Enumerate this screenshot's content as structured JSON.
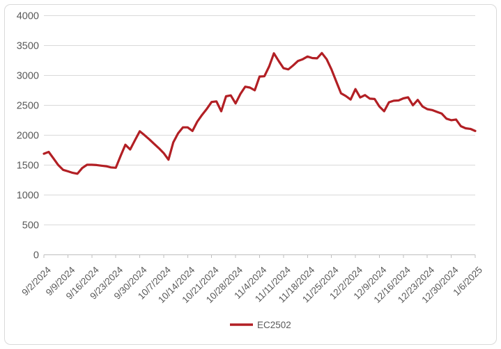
{
  "chart": {
    "legend_label": "EC2502",
    "colors": {
      "series": "#B21F24",
      "gridline": "#D9D9D9",
      "axis_line": "#BFBFBF",
      "label_text": "#595959",
      "background": "#FFFFFF",
      "frame_border": "#D9D9D9"
    }
  },
  "chart_data": {
    "type": "line",
    "title": "",
    "xlabel": "",
    "ylabel": "",
    "ylim": [
      0,
      4000
    ],
    "grid": "horizontal",
    "legend_position": "bottom",
    "y_ticks": [
      0,
      500,
      1000,
      1500,
      2000,
      2500,
      3000,
      3500,
      4000
    ],
    "x_tick_labels": [
      "9/2/2024",
      "9/9/2024",
      "9/16/2024",
      "9/23/2024",
      "9/30/2024",
      "10/7/2024",
      "10/14/2024",
      "10/21/2024",
      "10/28/2024",
      "11/4/2024",
      "11/11/2024",
      "11/18/2024",
      "11/25/2024",
      "12/2/2024",
      "12/9/2024",
      "12/16/2024",
      "12/23/2024",
      "12/30/2024",
      "1/6/2025"
    ],
    "x": [
      "9/2/2024",
      "9/3/2024",
      "9/4/2024",
      "9/5/2024",
      "9/6/2024",
      "9/9/2024",
      "9/10/2024",
      "9/11/2024",
      "9/12/2024",
      "9/13/2024",
      "9/16/2024",
      "9/17/2024",
      "9/18/2024",
      "9/19/2024",
      "9/20/2024",
      "9/23/2024",
      "9/24/2024",
      "9/25/2024",
      "9/26/2024",
      "9/27/2024",
      "9/30/2024",
      "10/1/2024",
      "10/2/2024",
      "10/3/2024",
      "10/4/2024",
      "10/7/2024",
      "10/8/2024",
      "10/9/2024",
      "10/10/2024",
      "10/11/2024",
      "10/14/2024",
      "10/15/2024",
      "10/16/2024",
      "10/17/2024",
      "10/18/2024",
      "10/21/2024",
      "10/22/2024",
      "10/23/2024",
      "10/24/2024",
      "10/25/2024",
      "10/28/2024",
      "10/29/2024",
      "10/30/2024",
      "10/31/2024",
      "11/1/2024",
      "11/4/2024",
      "11/5/2024",
      "11/6/2024",
      "11/7/2024",
      "11/8/2024",
      "11/11/2024",
      "11/12/2024",
      "11/13/2024",
      "11/14/2024",
      "11/15/2024",
      "11/18/2024",
      "11/19/2024",
      "11/20/2024",
      "11/21/2024",
      "11/22/2024",
      "11/25/2024",
      "11/26/2024",
      "11/27/2024",
      "11/28/2024",
      "11/29/2024",
      "12/2/2024",
      "12/3/2024",
      "12/4/2024",
      "12/5/2024",
      "12/6/2024",
      "12/9/2024",
      "12/10/2024",
      "12/11/2024",
      "12/12/2024",
      "12/13/2024",
      "12/16/2024",
      "12/17/2024",
      "12/18/2024",
      "12/19/2024",
      "12/20/2024",
      "12/23/2024",
      "12/24/2024",
      "12/25/2024",
      "12/26/2024",
      "12/27/2024",
      "12/30/2024",
      "12/31/2024",
      "1/1/2025",
      "1/2/2025",
      "1/3/2025",
      "1/6/2025"
    ],
    "series": [
      {
        "name": "EC2502",
        "values": [
          1690,
          1720,
          1610,
          1500,
          1420,
          1395,
          1370,
          1355,
          1450,
          1505,
          1505,
          1500,
          1490,
          1480,
          1460,
          1455,
          1650,
          1840,
          1760,
          1915,
          2065,
          2000,
          1930,
          1855,
          1780,
          1700,
          1590,
          1880,
          2030,
          2130,
          2130,
          2070,
          2225,
          2340,
          2440,
          2555,
          2565,
          2400,
          2650,
          2665,
          2530,
          2690,
          2810,
          2795,
          2750,
          2980,
          2985,
          3150,
          3369,
          3240,
          3120,
          3100,
          3165,
          3240,
          3270,
          3315,
          3290,
          3285,
          3373,
          3270,
          3100,
          2900,
          2700,
          2655,
          2595,
          2770,
          2630,
          2670,
          2610,
          2605,
          2480,
          2400,
          2550,
          2575,
          2580,
          2615,
          2632,
          2500,
          2590,
          2480,
          2435,
          2420,
          2390,
          2360,
          2275,
          2250,
          2262,
          2150,
          2115,
          2105,
          2070
        ]
      }
    ]
  }
}
